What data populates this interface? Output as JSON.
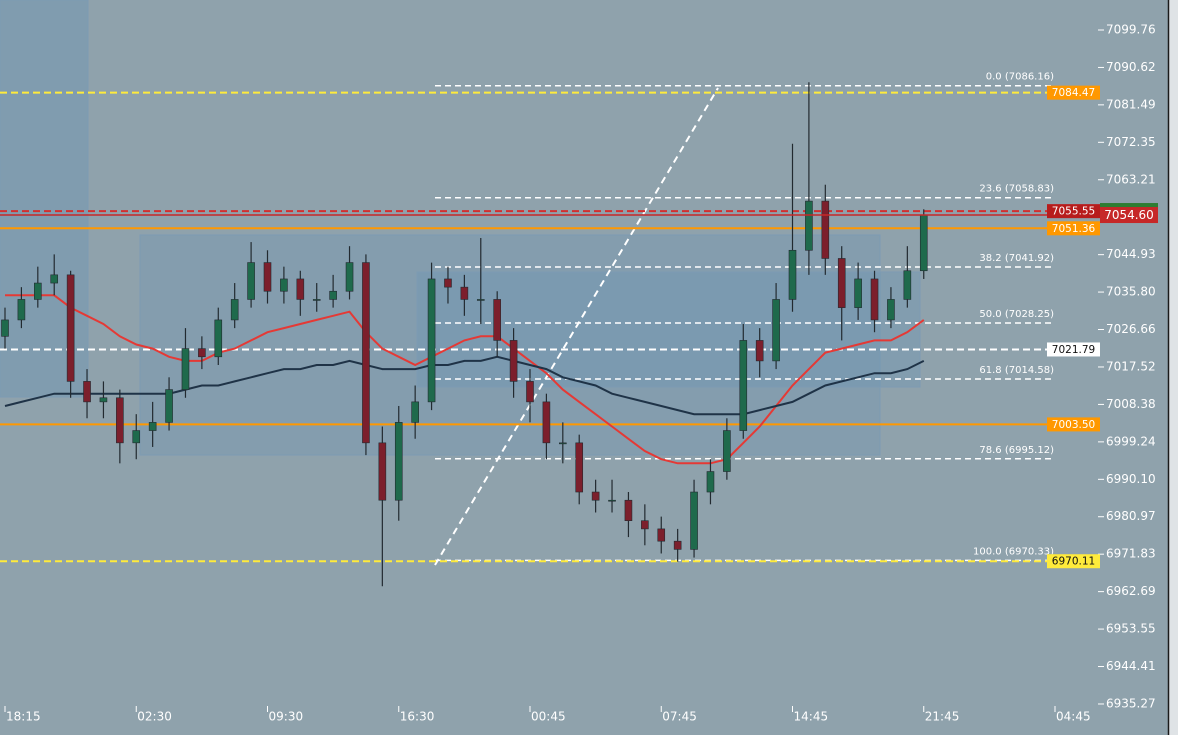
{
  "chart_data": {
    "type": "candlestick",
    "categories": [
      "18:15",
      null,
      null,
      null,
      null,
      null,
      null,
      null,
      "02:30",
      null,
      null,
      null,
      null,
      null,
      null,
      null,
      "09:30",
      null,
      null,
      null,
      null,
      null,
      null,
      null,
      "16:30",
      null,
      null,
      null,
      null,
      null,
      null,
      null,
      "00:45",
      null,
      null,
      null,
      null,
      null,
      null,
      null,
      "07:45",
      null,
      null,
      null,
      null,
      null,
      null,
      null,
      "14:45",
      null,
      null,
      null,
      null,
      null,
      null,
      null,
      "21:45",
      null,
      null,
      null,
      null,
      null,
      null,
      null,
      "04:45"
    ],
    "open": [
      7025,
      7029,
      7034,
      7038,
      7040,
      7014,
      7009,
      7010,
      6999,
      7002,
      7004,
      7012,
      7022,
      7020,
      7029,
      7034,
      7043,
      7036,
      7039,
      7034,
      7034,
      7036,
      7043,
      6999,
      6985,
      7004,
      7009,
      7039,
      7037,
      7034,
      7034,
      7024,
      7014,
      7009,
      6999,
      6999,
      6987,
      6985,
      6985,
      6980,
      6978,
      6975,
      6973,
      6987,
      6992,
      7002,
      7024,
      7019,
      7034,
      7046,
      7058,
      7044,
      7032,
      7039,
      7029,
      7034,
      7041,
      null,
      null,
      null,
      null,
      null,
      null,
      null,
      null
    ],
    "high": [
      7032,
      7037,
      7042,
      7045,
      7041,
      7017,
      7014,
      7012,
      7006,
      7009,
      7015,
      7027,
      7025,
      7032,
      7038,
      7048,
      7046,
      7042,
      7041,
      7038,
      7040,
      7047,
      7045,
      7003,
      7008,
      7013,
      7043,
      7042,
      7040,
      7049,
      7036,
      7027,
      7017,
      7011,
      7004,
      7001,
      6990,
      6990,
      6987,
      6984,
      6981,
      6978,
      6990,
      6995,
      7005,
      7028,
      7027,
      7038,
      7072,
      7087,
      7062,
      7047,
      7043,
      7041,
      7037,
      7047,
      7056,
      null,
      null,
      null,
      null,
      null,
      null,
      null,
      null
    ],
    "low": [
      7022,
      7027,
      7032,
      7035,
      7010,
      7005,
      7005,
      6994,
      6995,
      6998,
      7002,
      7010,
      7017,
      7018,
      7027,
      7032,
      7033,
      7033,
      7030,
      7031,
      7032,
      7034,
      6996,
      6964,
      6980,
      7000,
      7007,
      7033,
      7030,
      7028,
      7020,
      7010,
      7004,
      6995,
      6994,
      6984,
      6982,
      6982,
      6976,
      6974,
      6972,
      6970,
      6971,
      6984,
      6990,
      7000,
      7015,
      7017,
      7031,
      7040,
      7040,
      7024,
      7029,
      7026,
      7027,
      7032,
      7039,
      null,
      null,
      null,
      null,
      null,
      null,
      null,
      null
    ],
    "close": [
      7029,
      7034,
      7038,
      7040,
      7014,
      7009,
      7010,
      6999,
      7002,
      7004,
      7012,
      7022,
      7020,
      7029,
      7034,
      7043,
      7036,
      7039,
      7034,
      7034,
      7036,
      7043,
      6999,
      6985,
      7004,
      7009,
      7039,
      7037,
      7034,
      7034,
      7024,
      7014,
      7009,
      6999,
      6999,
      6987,
      6985,
      6985,
      6980,
      6978,
      6975,
      6973,
      6987,
      6992,
      7002,
      7024,
      7019,
      7034,
      7046,
      7058,
      7044,
      7032,
      7039,
      7029,
      7034,
      7041,
      7054.6,
      null,
      null,
      null,
      null,
      null,
      null,
      null,
      null
    ],
    "up_color": "#1f6a4c",
    "down_color": "#7c1f2c",
    "series": [
      {
        "color": "#e53935",
        "values": [
          7035,
          7035,
          7035,
          7035,
          7032,
          7030,
          7028,
          7025,
          7023,
          7022,
          7020,
          7019,
          7019,
          7021,
          7022,
          7024,
          7026,
          7027,
          7028,
          7029,
          7030,
          7031,
          7026,
          7022,
          7020,
          7018,
          7020,
          7022,
          7024,
          7025,
          7025,
          7022,
          7019,
          7016,
          7012,
          7009,
          7006,
          7003,
          7000,
          6997,
          6995,
          6994,
          6994,
          6994,
          6995,
          6999,
          7003,
          7008,
          7013,
          7017,
          7021,
          7022,
          7023,
          7024,
          7024,
          7026,
          7029,
          null,
          null,
          null,
          null,
          null,
          null,
          null,
          null
        ]
      },
      {
        "color": "#1f3347",
        "values": [
          7008,
          7009,
          7010,
          7011,
          7011,
          7011,
          7011,
          7011,
          7011,
          7011,
          7011,
          7012,
          7013,
          7013,
          7014,
          7015,
          7016,
          7017,
          7017,
          7018,
          7018,
          7019,
          7018,
          7017,
          7017,
          7017,
          7018,
          7018,
          7019,
          7019,
          7020,
          7019,
          7018,
          7017,
          7015,
          7014,
          7013,
          7011,
          7010,
          7009,
          7008,
          7007,
          7006,
          7006,
          7006,
          7006,
          7007,
          7008,
          7009,
          7011,
          7013,
          7014,
          7015,
          7016,
          7016,
          7017,
          7019,
          null,
          null,
          null,
          null,
          null,
          null,
          null,
          null
        ]
      }
    ],
    "ylim": [
      6927.7,
      7107.08
    ],
    "yticks": [
      {
        "value": 7099.76,
        "label": "7099.76"
      },
      {
        "value": 7090.62,
        "label": "7090.62"
      },
      {
        "value": 7081.49,
        "label": "7081.49"
      },
      {
        "value": 7072.35,
        "label": "7072.35"
      },
      {
        "value": 7063.21,
        "label": "7063.21"
      },
      {
        "value": 7044.93,
        "label": "7044.93"
      },
      {
        "value": 7035.8,
        "label": "7035.80"
      },
      {
        "value": 7026.66,
        "label": "7026.66"
      },
      {
        "value": 7017.52,
        "label": "7017.52"
      },
      {
        "value": 7008.38,
        "label": "7008.38"
      },
      {
        "value": 6999.24,
        "label": "6999.24"
      },
      {
        "value": 6990.1,
        "label": "6990.10"
      },
      {
        "value": 6980.97,
        "label": "6980.97"
      },
      {
        "value": 6971.83,
        "label": "6971.83"
      },
      {
        "value": 6962.69,
        "label": "6962.69"
      },
      {
        "value": 6953.55,
        "label": "6953.55"
      },
      {
        "value": 6944.41,
        "label": "6944.41"
      },
      {
        "value": 6935.27,
        "label": "6935.27"
      }
    ],
    "levels": [
      {
        "value": 7084.47,
        "label": "7084.47",
        "color": "#ffeb3b",
        "dashed": true,
        "tag_color": "#ff9800",
        "text_color": "#ffffff"
      },
      {
        "value": 7055.55,
        "label": "7055.55",
        "color": "#d32f2f",
        "dashed": true,
        "tag_color": "#b71c1c",
        "text_color": "#ffffff"
      },
      {
        "value": 7051.36,
        "label": "7051.36",
        "color": "#ff9800",
        "dashed": false,
        "tag_color": "#ff9800",
        "text_color": "#ffffff"
      },
      {
        "value": 7021.79,
        "label": "7021.79",
        "color": "#ffffff",
        "dashed": true,
        "tag_color": "#ffffff",
        "text_color": "#111111"
      },
      {
        "value": 7003.5,
        "label": "7003.50",
        "color": "#ff9800",
        "dashed": false,
        "tag_color": "#ff9800",
        "text_color": "#ffffff"
      },
      {
        "value": 6970.11,
        "label": "6970.11",
        "color": "#ffeb3b",
        "dashed": true,
        "tag_color": "#ffeb3b",
        "text_color": "#111111"
      }
    ],
    "fib_levels": [
      {
        "value": 7086.16,
        "label": "0.0 (7086.16)"
      },
      {
        "value": 7058.83,
        "label": "23.6 (7058.83)"
      },
      {
        "value": 7041.92,
        "label": "38.2 (7041.92)"
      },
      {
        "value": 7028.25,
        "label": "50.0 (7028.25)"
      },
      {
        "value": 7014.58,
        "label": "61.8 (7014.58)"
      },
      {
        "value": 6995.12,
        "label": "78.6 (6995.12)"
      },
      {
        "value": 6970.33,
        "label": "100.0 (6970.33)"
      }
    ],
    "last_price": {
      "label": "7054.60",
      "color": "#c62828"
    }
  }
}
